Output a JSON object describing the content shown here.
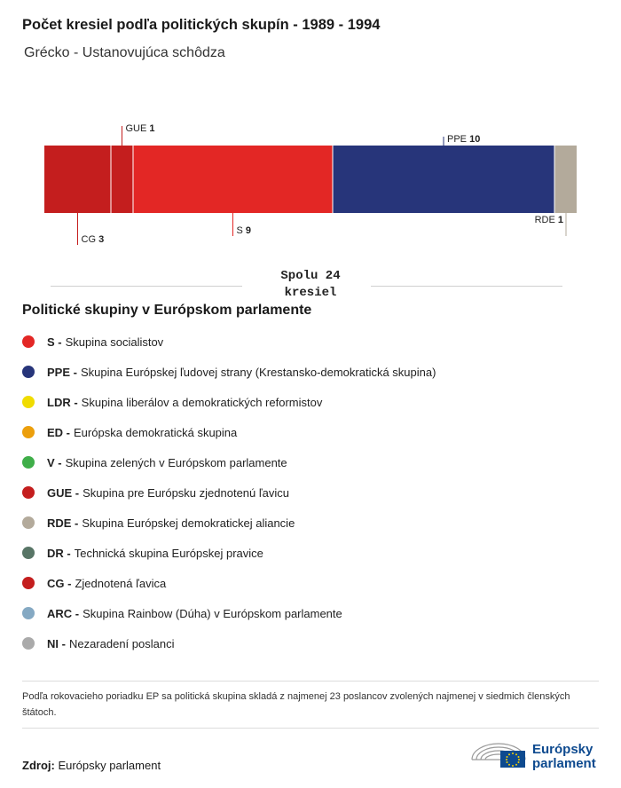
{
  "header": {
    "title": "Počet kresiel podľa politických skupín - 1989 - 1994",
    "subtitle": "Grécko - Ustanovujúca schôdza"
  },
  "chart_data": {
    "type": "bar",
    "orientation": "stacked-horizontal",
    "categories": [
      "CG",
      "GUE",
      "S",
      "PPE",
      "RDE"
    ],
    "values": [
      3,
      1,
      9,
      10,
      1
    ],
    "colors": [
      "#c41e1e",
      "#c41e1e",
      "#e32725",
      "#27357a",
      "#b3aa9b"
    ],
    "label_position": [
      "bottom",
      "top",
      "bottom",
      "top",
      "bottom"
    ],
    "total": 24,
    "xlim": [
      0,
      24
    ]
  },
  "total": {
    "line1": "Spolu 24",
    "line2": "kresiel"
  },
  "legend": {
    "title": "Politické skupiny v Európskom parlamente",
    "items": [
      {
        "abbr": "S -",
        "text": "Skupina socialistov",
        "color": "#e32725"
      },
      {
        "abbr": "PPE -",
        "text": "Skupina Európskej ľudovej strany (Krestansko-demokratická skupina)",
        "color": "#27357a"
      },
      {
        "abbr": "LDR -",
        "text": "Skupina liberálov a demokratických reformistov",
        "color": "#f0dc00"
      },
      {
        "abbr": "ED -",
        "text": "Európska demokratická skupina",
        "color": "#ec9f0c"
      },
      {
        "abbr": "V -",
        "text": "Skupina zelených v Európskom parlamente",
        "color": "#3fae49"
      },
      {
        "abbr": "GUE -",
        "text": "Skupina pre Európsku zjednotenú ľavicu",
        "color": "#c41e1e"
      },
      {
        "abbr": "RDE -",
        "text": "Skupina Európskej demokratickej aliancie",
        "color": "#b3aa9b"
      },
      {
        "abbr": "DR -",
        "text": "Technická skupina Európskej pravice",
        "color": "#587566"
      },
      {
        "abbr": "CG -",
        "text": "Zjednotená ľavica",
        "color": "#c41e1e"
      },
      {
        "abbr": "ARC -",
        "text": "Skupina Rainbow (Dúha) v Európskom parlamente",
        "color": "#85a9c3"
      },
      {
        "abbr": "NI -",
        "text": "Nezaradení poslanci",
        "color": "#aaaaaa"
      }
    ]
  },
  "note": "Podľa rokovacieho poriadku EP sa politická skupina skladá z najmenej 23 poslancov zvolených najmenej v siedmich členských štátoch.",
  "source": {
    "label": "Zdroj:",
    "value": "Európsky parlament"
  },
  "logo": {
    "line1": "Európsky",
    "line2": "parlament",
    "color": "#0e4a8f"
  }
}
